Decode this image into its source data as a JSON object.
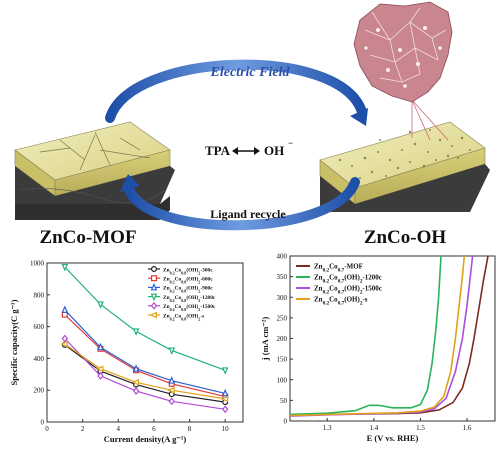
{
  "schematic": {
    "arc_top_label": "Electric Field",
    "center_left": "TPA",
    "center_right": "OH",
    "center_right_sup": "−",
    "arc_bottom_label": "Ligand recycle",
    "left_caption": "ZnCo-MOF",
    "right_caption": "ZnCo-OH",
    "colors": {
      "arc": "#2f5fb5",
      "slab_top": "#e8e2a0",
      "slab_side": "#3a3a3a",
      "crystal": "#c9868e"
    }
  },
  "chart_data": [
    {
      "type": "line",
      "ylabel": "Specific capacity(C g⁻¹)",
      "xlabel": "Current density(A g⁻¹)",
      "xlim": [
        0,
        11
      ],
      "ylim": [
        0,
        1000
      ],
      "xticks": [
        "0",
        "2",
        "4",
        "6",
        "8",
        "10"
      ],
      "yticks": [
        "0",
        "200",
        "400",
        "600",
        "800",
        "1000"
      ],
      "x": [
        1,
        3,
        5,
        7,
        10
      ],
      "legend_position": "top-right",
      "series": [
        {
          "name": "Zn0.2Co0.8(OH)2-300c",
          "color": "#222222",
          "marker": "circle",
          "values": [
            485,
            320,
            235,
            175,
            125
          ]
        },
        {
          "name": "Zn0.2Co0.8(OH)2-600c",
          "color": "#e33a3a",
          "marker": "square",
          "values": [
            675,
            460,
            325,
            240,
            160
          ]
        },
        {
          "name": "Zn0.2Co0.8(OH)2-900c",
          "color": "#2d5fd3",
          "marker": "triangle",
          "values": [
            705,
            470,
            335,
            260,
            180
          ]
        },
        {
          "name": "Zn0.2Co0.8(OH)2-1200c",
          "color": "#22b07a",
          "marker": "triangle-down",
          "values": [
            975,
            740,
            570,
            450,
            325
          ]
        },
        {
          "name": "Zn0.2Co0.8(OH)2-1500c",
          "color": "#b44ad6",
          "marker": "diamond",
          "values": [
            525,
            290,
            195,
            130,
            80
          ]
        },
        {
          "name": "Zn0.2Co0.8(OH)2-s",
          "color": "#e0a21a",
          "marker": "triangle-left",
          "values": [
            490,
            335,
            250,
            200,
            145
          ]
        }
      ]
    },
    {
      "type": "line",
      "ylabel": "j (mA cm⁻²)",
      "xlabel": "E (V vs. RHE)",
      "xlim": [
        1.22,
        1.66
      ],
      "ylim": [
        0,
        400
      ],
      "xticks": [
        "1.3",
        "1.4",
        "1.5",
        "1.6"
      ],
      "yticks": [
        "0",
        "50",
        "100",
        "150",
        "200",
        "250",
        "300",
        "350",
        "400"
      ],
      "legend_position": "top-left",
      "series": [
        {
          "name": "Zn0.2Co0.7-MOF",
          "color": "#7b2a24",
          "points": [
            [
              1.22,
              14
            ],
            [
              1.3,
              16
            ],
            [
              1.38,
              17
            ],
            [
              1.45,
              18
            ],
            [
              1.5,
              20
            ],
            [
              1.54,
              27
            ],
            [
              1.57,
              45
            ],
            [
              1.59,
              80
            ],
            [
              1.605,
              140
            ],
            [
              1.615,
              200
            ],
            [
              1.625,
              270
            ],
            [
              1.635,
              340
            ],
            [
              1.645,
              400
            ]
          ]
        },
        {
          "name": "Zn0.2Co0.7(OH)2-1200c",
          "color": "#27b55a",
          "points": [
            [
              1.22,
              16
            ],
            [
              1.3,
              19
            ],
            [
              1.36,
              25
            ],
            [
              1.39,
              38
            ],
            [
              1.41,
              38
            ],
            [
              1.44,
              32
            ],
            [
              1.48,
              32
            ],
            [
              1.5,
              40
            ],
            [
              1.515,
              75
            ],
            [
              1.525,
              140
            ],
            [
              1.533,
              220
            ],
            [
              1.539,
              300
            ],
            [
              1.544,
              400
            ]
          ]
        },
        {
          "name": "Zn0.2Co0.7(OH)2-1500c",
          "color": "#a64fe0",
          "points": [
            [
              1.22,
              12
            ],
            [
              1.3,
              15
            ],
            [
              1.38,
              17
            ],
            [
              1.45,
              19
            ],
            [
              1.5,
              22
            ],
            [
              1.53,
              30
            ],
            [
              1.555,
              55
            ],
            [
              1.575,
              120
            ],
            [
              1.59,
              200
            ],
            [
              1.6,
              280
            ],
            [
              1.607,
              350
            ],
            [
              1.612,
              400
            ]
          ]
        },
        {
          "name": "Zn0.2Co0.7(OH)2-s",
          "color": "#e2a11c",
          "points": [
            [
              1.22,
              13
            ],
            [
              1.3,
              16
            ],
            [
              1.38,
              18
            ],
            [
              1.45,
              20
            ],
            [
              1.5,
              24
            ],
            [
              1.53,
              34
            ],
            [
              1.55,
              60
            ],
            [
              1.565,
              120
            ],
            [
              1.575,
              200
            ],
            [
              1.583,
              280
            ],
            [
              1.59,
              350
            ],
            [
              1.594,
              400
            ]
          ]
        }
      ]
    }
  ]
}
